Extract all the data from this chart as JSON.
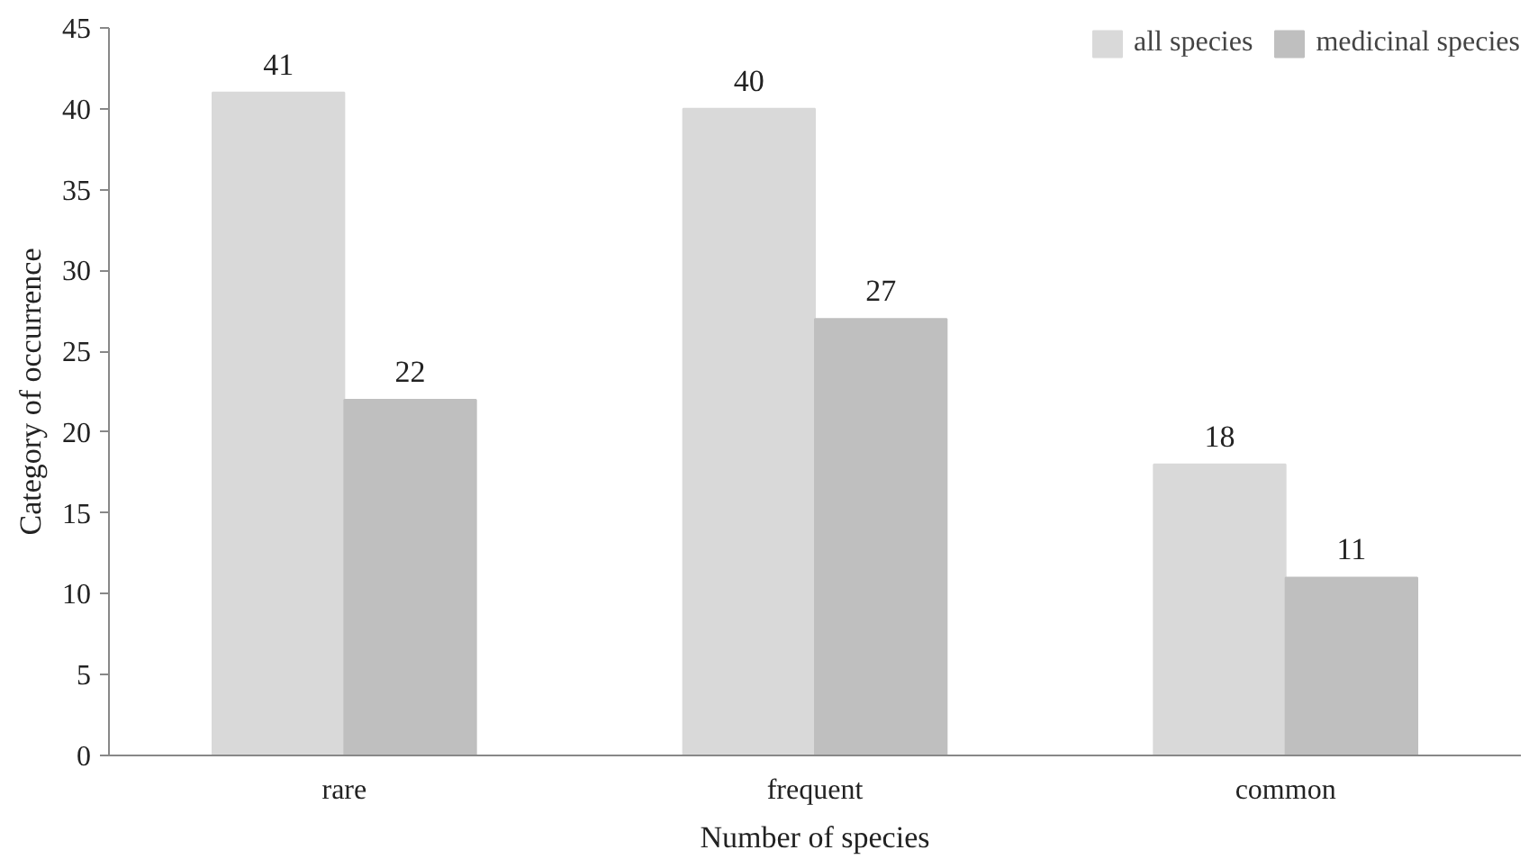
{
  "chart_data": {
    "type": "bar",
    "xlabel": "Number of species",
    "ylabel": "Category of occurrence",
    "categories": [
      "rare",
      "frequent",
      "common"
    ],
    "series": [
      {
        "name": "all species",
        "color": "#d9d9d9",
        "values": [
          41,
          40,
          18
        ]
      },
      {
        "name": "medicinal species",
        "color": "#bfbfbf",
        "values": [
          22,
          27,
          11
        ]
      }
    ],
    "ylim": [
      0,
      45
    ],
    "yticks": [
      0,
      5,
      10,
      15,
      20,
      25,
      30,
      35,
      40,
      45
    ],
    "grid": false,
    "legend": "top right",
    "data_labels": true
  }
}
